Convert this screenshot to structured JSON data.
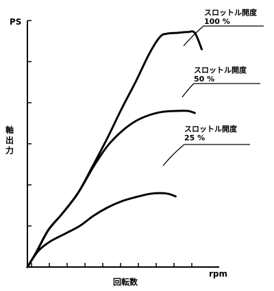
{
  "chart_data": {
    "type": "line",
    "ylabel": "軸出力",
    "yunit": "PS",
    "xlabel": "回転数",
    "xunit": "rpm",
    "grid": false,
    "legend": "none",
    "xlim": [
      0,
      11
    ],
    "ylim": [
      0,
      6
    ],
    "y_tick_count": 6,
    "x_tick_count": 11,
    "series": [
      {
        "name": "スロットル開度 100 %",
        "label_line1": "スロットル開度",
        "label_line2": "100 %",
        "x": [
          0,
          0.5,
          1.2,
          2.0,
          2.9,
          3.8,
          4.6,
          5.4,
          6.2,
          7.0,
          7.6,
          8.0,
          8.6,
          9.2,
          9.6,
          10.0
        ],
        "y": [
          0.0,
          0.35,
          0.9,
          1.3,
          1.8,
          2.5,
          3.15,
          3.85,
          4.5,
          5.2,
          5.6,
          5.68,
          5.7,
          5.72,
          5.7,
          5.3
        ]
      },
      {
        "name": "スロットル開度 50 %",
        "label_line1": "スロットル開度",
        "label_line2": "50 %",
        "x": [
          0,
          0.5,
          1.2,
          2.0,
          2.9,
          3.8,
          4.6,
          5.4,
          6.2,
          7.0,
          7.8,
          8.6,
          9.2,
          9.6
        ],
        "y": [
          0.0,
          0.35,
          0.9,
          1.3,
          1.8,
          2.45,
          2.95,
          3.3,
          3.55,
          3.7,
          3.78,
          3.8,
          3.8,
          3.75
        ]
      },
      {
        "name": "スロットル開度 25 %",
        "label_line1": "スロットル開度",
        "label_line2": "25 %",
        "x": [
          0,
          0.6,
          1.3,
          2.2,
          3.0,
          3.8,
          4.6,
          5.4,
          6.2,
          7.0,
          7.6,
          8.1,
          8.5
        ],
        "y": [
          0.0,
          0.38,
          0.62,
          0.82,
          1.0,
          1.25,
          1.45,
          1.6,
          1.7,
          1.78,
          1.8,
          1.78,
          1.72
        ]
      }
    ]
  }
}
